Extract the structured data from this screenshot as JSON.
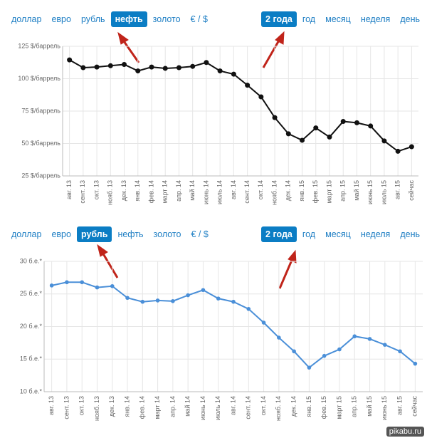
{
  "chart_data": [
    {
      "type": "line",
      "currency_tabs": [
        "доллар",
        "евро",
        "рубль",
        "нефть",
        "золото",
        "€ / $"
      ],
      "active_tab": 3,
      "period_tabs": [
        "2 года",
        "год",
        "месяц",
        "неделя",
        "день"
      ],
      "active_period": 0,
      "categories": [
        "авг. 13",
        "сент. 13",
        "окт. 13",
        "нояб. 13",
        "дек. 13",
        "янв. 14",
        "фев. 14",
        "март 14",
        "апр. 14",
        "май 14",
        "июнь 14",
        "июль 14",
        "авг. 14",
        "сент. 14",
        "окт. 14",
        "нояб. 14",
        "дек. 14",
        "янв. 15",
        "фев. 15",
        "март 15",
        "апр. 15",
        "май 15",
        "июнь 15",
        "июль 15",
        "авг. 15",
        "сейчас"
      ],
      "values": [
        114.5,
        108.5,
        109,
        110,
        111,
        106,
        109,
        108,
        108.5,
        109.5,
        112.5,
        106,
        103.5,
        95,
        86,
        70,
        57.5,
        52.5,
        62,
        55,
        67,
        66,
        63.5,
        52,
        44,
        47.5
      ],
      "color": "#111111",
      "ylim": [
        25,
        125
      ],
      "yticks": [
        {
          "value": 25,
          "label": "25 $/баррель"
        },
        {
          "value": 50,
          "label": "50 $/баррель"
        },
        {
          "value": 75,
          "label": "75 $/баррель"
        },
        {
          "value": 100,
          "label": "100 $/баррель"
        },
        {
          "value": 125,
          "label": "125 $/баррель"
        }
      ],
      "grid": true
    },
    {
      "type": "line",
      "currency_tabs": [
        "доллар",
        "евро",
        "рубль",
        "нефть",
        "золото",
        "€ / $"
      ],
      "active_tab": 2,
      "period_tabs": [
        "2 года",
        "год",
        "месяц",
        "неделя",
        "день"
      ],
      "active_period": 0,
      "categories": [
        "авг. 13",
        "сент. 13",
        "окт. 13",
        "нояб. 13",
        "дек. 13",
        "янв. 14",
        "фев. 14",
        "март 14",
        "апр. 14",
        "май 14",
        "июнь 14",
        "июль 14",
        "авг. 14",
        "сент. 14",
        "окт. 14",
        "нояб. 14",
        "дек. 14",
        "янв. 15",
        "фев. 15",
        "март 15",
        "апр. 15",
        "май 15",
        "июнь 15",
        "авг. 15",
        "сейчас"
      ],
      "values": [
        26.3,
        26.8,
        26.8,
        26,
        26.2,
        24.4,
        23.8,
        24,
        23.9,
        24.8,
        25.6,
        24.3,
        23.8,
        22.7,
        20.6,
        18.3,
        16.2,
        13.7,
        15.5,
        16.5,
        18.5,
        18.1,
        17.2,
        16.2,
        14.3
      ],
      "color": "#4a8fd8",
      "ylim": [
        10,
        30
      ],
      "yticks": [
        {
          "value": 10,
          "label": "10 б.е.*"
        },
        {
          "value": 15,
          "label": "15 б.е.*"
        },
        {
          "value": 20,
          "label": "20 б.е.*"
        },
        {
          "value": 25,
          "label": "25 б.е.*"
        },
        {
          "value": 30,
          "label": "30 б.е.*"
        }
      ],
      "grid": true
    }
  ],
  "watermark": "pikabu.ru"
}
